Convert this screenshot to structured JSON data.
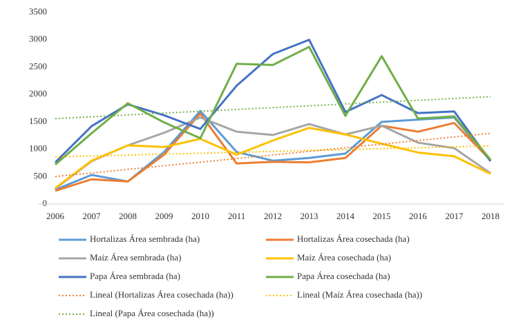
{
  "chart_data": {
    "type": "line",
    "categories": [
      "2006",
      "2007",
      "2008",
      "2009",
      "2010",
      "2011",
      "2012",
      "2013",
      "2014",
      "2015",
      "2016",
      "2017",
      "2018"
    ],
    "ylim": [
      0,
      3500
    ],
    "yticks": [
      0,
      500,
      1000,
      1500,
      2000,
      2500,
      3000,
      3500
    ],
    "grid": false,
    "series": [
      {
        "name": "Hortalizas Área sembrada (ha)",
        "color": "#5b9bd5",
        "dashed": false,
        "values": [
          260,
          530,
          410,
          950,
          1700,
          950,
          790,
          840,
          920,
          1500,
          1540,
          1580,
          790
        ]
      },
      {
        "name": "Hortalizas Área cosechada (ha)",
        "color": "#ed7d31",
        "dashed": false,
        "values": [
          240,
          450,
          410,
          900,
          1650,
          740,
          770,
          760,
          840,
          1430,
          1320,
          1480,
          800
        ]
      },
      {
        "name": "Maíz Área sembrada (ha)",
        "color": "#a5a5a5",
        "dashed": false,
        "values": [
          280,
          780,
          1070,
          1300,
          1580,
          1320,
          1260,
          1460,
          1270,
          1430,
          1120,
          1020,
          560
        ]
      },
      {
        "name": "Maíz Área cosechada (ha)",
        "color": "#ffc000",
        "dashed": false,
        "values": [
          290,
          790,
          1070,
          1040,
          1190,
          900,
          1160,
          1390,
          1270,
          1100,
          940,
          870,
          550
        ]
      },
      {
        "name": "Papa Área sembrada (ha)",
        "color": "#4472c4",
        "dashed": false,
        "values": [
          760,
          1420,
          1820,
          1620,
          1370,
          2160,
          2740,
          3000,
          1680,
          1990,
          1660,
          1690,
          780
        ]
      },
      {
        "name": "Papa Área cosechada (ha)",
        "color": "#70ad47",
        "dashed": false,
        "values": [
          720,
          1290,
          1840,
          1490,
          1200,
          2560,
          2540,
          2870,
          1610,
          2700,
          1560,
          1600,
          810
        ]
      },
      {
        "name": "Lineal (Hortalizas Área cosechada (ha))",
        "color": "#ed7d31",
        "dashed": true,
        "values": [
          500,
          566,
          632,
          698,
          764,
          830,
          895,
          961,
          1027,
          1093,
          1159,
          1225,
          1290
        ]
      },
      {
        "name": "Lineal (Maíz Área cosechada (ha))",
        "color": "#ffc000",
        "dashed": true,
        "values": [
          860,
          877,
          893,
          910,
          927,
          943,
          960,
          977,
          993,
          1010,
          1027,
          1043,
          1060
        ]
      },
      {
        "name": "Lineal (Papa Área cosechada (ha))",
        "color": "#70ad47",
        "dashed": true,
        "values": [
          1560,
          1593,
          1627,
          1660,
          1693,
          1727,
          1760,
          1793,
          1827,
          1860,
          1893,
          1927,
          1960
        ]
      }
    ]
  }
}
